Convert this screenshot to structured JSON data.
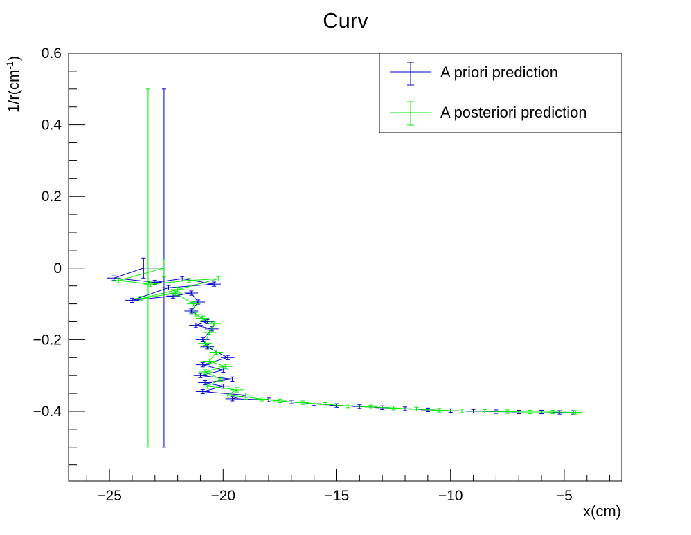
{
  "chart_data": {
    "type": "scatter",
    "title": "Curv",
    "xlabel": "x(cm)",
    "ylabel": "1/r(cm",
    "ylabel_sup": "-1",
    "ylabel_suffix": ")",
    "xlim": [
      -26.8,
      -2.5
    ],
    "ylim": [
      -0.595,
      0.6
    ],
    "x_ticks": [
      -25,
      -20,
      -15,
      -10,
      -5
    ],
    "x_tick_labels": [
      "−25",
      "−20",
      "−15",
      "−10",
      "−5"
    ],
    "y_ticks": [
      -0.4,
      -0.2,
      0,
      0.2,
      0.4,
      0.6
    ],
    "y_tick_labels": [
      "−0.4",
      "−0.2",
      "0",
      "0.2",
      "0.4",
      "0.6"
    ],
    "grid": false,
    "legend_position": "top-right",
    "colors": {
      "a_priori": "#0000cc",
      "a_posteriori": "#00ee00"
    },
    "series": [
      {
        "name": "A priori prediction",
        "color": "#0000cc",
        "points": [
          [
            -22.6,
            0.0,
            0.0,
            0.5
          ],
          [
            -23.5,
            0.0,
            0.0,
            0.028
          ],
          [
            -24.8,
            -0.028,
            0.3,
            0.006
          ],
          [
            -23.0,
            -0.04,
            0.3,
            0.006
          ],
          [
            -21.8,
            -0.03,
            0.3,
            0.006
          ],
          [
            -20.4,
            -0.045,
            0.3,
            0.006
          ],
          [
            -22.4,
            -0.055,
            0.3,
            0.006
          ],
          [
            -24.0,
            -0.09,
            0.3,
            0.006
          ],
          [
            -22.2,
            -0.078,
            0.3,
            0.006
          ],
          [
            -21.4,
            -0.07,
            0.3,
            0.006
          ],
          [
            -21.1,
            -0.095,
            0.3,
            0.006
          ],
          [
            -21.4,
            -0.12,
            0.3,
            0.006
          ],
          [
            -20.7,
            -0.15,
            0.3,
            0.006
          ],
          [
            -21.2,
            -0.16,
            0.3,
            0.006
          ],
          [
            -20.5,
            -0.17,
            0.3,
            0.006
          ],
          [
            -20.9,
            -0.2,
            0.3,
            0.006
          ],
          [
            -20.7,
            -0.22,
            0.3,
            0.006
          ],
          [
            -19.8,
            -0.25,
            0.3,
            0.006
          ],
          [
            -20.9,
            -0.27,
            0.3,
            0.006
          ],
          [
            -20.0,
            -0.285,
            0.3,
            0.006
          ],
          [
            -21.0,
            -0.3,
            0.3,
            0.006
          ],
          [
            -19.6,
            -0.31,
            0.3,
            0.006
          ],
          [
            -20.8,
            -0.32,
            0.3,
            0.006
          ],
          [
            -20.0,
            -0.33,
            0.3,
            0.006
          ],
          [
            -20.9,
            -0.345,
            0.3,
            0.006
          ],
          [
            -19.0,
            -0.355,
            0.3,
            0.006
          ],
          [
            -19.6,
            -0.365,
            0.3,
            0.006
          ],
          [
            -18.0,
            -0.368,
            0.3,
            0.005
          ],
          [
            -17.0,
            -0.374,
            0.3,
            0.005
          ],
          [
            -16.0,
            -0.379,
            0.3,
            0.005
          ],
          [
            -15.0,
            -0.384,
            0.3,
            0.005
          ],
          [
            -14.0,
            -0.387,
            0.3,
            0.005
          ],
          [
            -13.0,
            -0.39,
            0.3,
            0.005
          ],
          [
            -12.0,
            -0.393,
            0.3,
            0.005
          ],
          [
            -11.0,
            -0.396,
            0.3,
            0.005
          ],
          [
            -10.0,
            -0.398,
            0.3,
            0.005
          ],
          [
            -9.0,
            -0.4,
            0.3,
            0.005
          ],
          [
            -8.0,
            -0.401,
            0.3,
            0.005
          ],
          [
            -7.0,
            -0.402,
            0.3,
            0.005
          ],
          [
            -6.0,
            -0.402,
            0.3,
            0.005
          ],
          [
            -5.2,
            -0.403,
            0.3,
            0.005
          ],
          [
            -4.6,
            -0.403,
            0.3,
            0.005
          ]
        ]
      },
      {
        "name": "A posteriori prediction",
        "color": "#00ee00",
        "points": [
          [
            -23.3,
            0.0,
            0.0,
            0.5
          ],
          [
            -22.6,
            0.0,
            0.0,
            0.025
          ],
          [
            -24.6,
            -0.035,
            0.3,
            0.006
          ],
          [
            -23.2,
            -0.045,
            0.3,
            0.006
          ],
          [
            -21.5,
            -0.035,
            0.3,
            0.006
          ],
          [
            -20.2,
            -0.03,
            0.3,
            0.006
          ],
          [
            -22.0,
            -0.06,
            0.3,
            0.006
          ],
          [
            -23.6,
            -0.085,
            0.3,
            0.006
          ],
          [
            -22.1,
            -0.07,
            0.3,
            0.006
          ],
          [
            -21.3,
            -0.1,
            0.3,
            0.006
          ],
          [
            -21.2,
            -0.13,
            0.3,
            0.006
          ],
          [
            -20.9,
            -0.14,
            0.3,
            0.006
          ],
          [
            -20.4,
            -0.155,
            0.3,
            0.006
          ],
          [
            -20.6,
            -0.18,
            0.3,
            0.006
          ],
          [
            -20.8,
            -0.21,
            0.3,
            0.006
          ],
          [
            -20.3,
            -0.235,
            0.3,
            0.006
          ],
          [
            -20.6,
            -0.26,
            0.3,
            0.006
          ],
          [
            -19.9,
            -0.275,
            0.3,
            0.006
          ],
          [
            -20.8,
            -0.29,
            0.3,
            0.006
          ],
          [
            -20.1,
            -0.31,
            0.3,
            0.006
          ],
          [
            -20.7,
            -0.33,
            0.3,
            0.006
          ],
          [
            -19.4,
            -0.34,
            0.3,
            0.006
          ],
          [
            -19.8,
            -0.355,
            0.3,
            0.006
          ],
          [
            -19.0,
            -0.36,
            0.3,
            0.006
          ],
          [
            -18.3,
            -0.366,
            0.3,
            0.005
          ],
          [
            -17.5,
            -0.371,
            0.3,
            0.005
          ],
          [
            -16.5,
            -0.376,
            0.3,
            0.005
          ],
          [
            -15.5,
            -0.381,
            0.3,
            0.005
          ],
          [
            -14.5,
            -0.385,
            0.3,
            0.005
          ],
          [
            -13.5,
            -0.388,
            0.3,
            0.005
          ],
          [
            -12.5,
            -0.391,
            0.3,
            0.005
          ],
          [
            -11.5,
            -0.394,
            0.3,
            0.005
          ],
          [
            -10.5,
            -0.397,
            0.3,
            0.005
          ],
          [
            -9.5,
            -0.399,
            0.3,
            0.005
          ],
          [
            -8.5,
            -0.4,
            0.3,
            0.005
          ],
          [
            -7.5,
            -0.401,
            0.3,
            0.005
          ],
          [
            -6.5,
            -0.402,
            0.3,
            0.005
          ],
          [
            -5.5,
            -0.402,
            0.3,
            0.005
          ],
          [
            -4.5,
            -0.403,
            0.3,
            0.005
          ]
        ]
      }
    ]
  }
}
